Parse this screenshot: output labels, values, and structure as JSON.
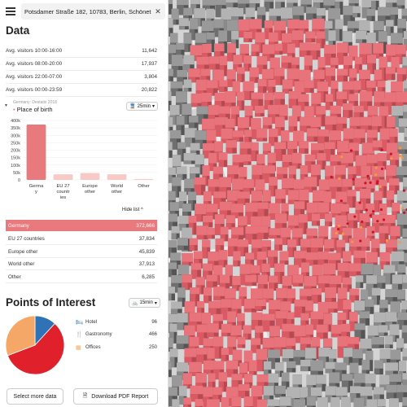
{
  "search": {
    "value": "Potsdamer Straße 182, 10783, Berlin, Schönet"
  },
  "data_section": {
    "title": "Data",
    "stats": [
      {
        "label": "Avg. visitors 10:00-16:00",
        "value": "11,642"
      },
      {
        "label": "Avg. visitors 08:00-20:00",
        "value": "17,937"
      },
      {
        "label": "Avg. visitors 22:00-07:00",
        "value": "3,804"
      },
      {
        "label": "Avg. visitors 00:00-23:59",
        "value": "20,822"
      }
    ]
  },
  "place_of_birth": {
    "source": "Germany: Destatis 2018",
    "title": "Place of birth",
    "time_badge": "25min",
    "hide_list_label": "Hide list",
    "list": [
      {
        "label": "Germany",
        "value": "372,666"
      },
      {
        "label": "EU 27 countries",
        "value": "37,834"
      },
      {
        "label": "Europe other",
        "value": "45,839"
      },
      {
        "label": "World other",
        "value": "37,913"
      },
      {
        "label": "Other",
        "value": "6,285"
      }
    ]
  },
  "chart_data": {
    "type": "bar",
    "categories": [
      "Germany",
      "EU 27 countries",
      "Europe other",
      "World other",
      "Other"
    ],
    "category_tick_lines": [
      [
        "Germa",
        "y"
      ],
      [
        "EU 27",
        "countr",
        "ies"
      ],
      [
        "Europe",
        "other"
      ],
      [
        "World",
        "other"
      ],
      [
        "Other"
      ]
    ],
    "values": [
      372666,
      37834,
      45839,
      37913,
      6285
    ],
    "ylim": [
      0,
      400000
    ],
    "yticks": [
      "0",
      "50k",
      "100k",
      "150k",
      "200k",
      "250k",
      "300k",
      "350k",
      "400k"
    ],
    "colors": [
      "#e8797c",
      "#f7c9c7",
      "#f7c9c7",
      "#f7c9c7",
      "#f7c9c7"
    ],
    "title": "",
    "xlabel": "",
    "ylabel": ""
  },
  "poi": {
    "title": "Points of Interest",
    "time_badge": "15min",
    "items": [
      {
        "icon": "bed-icon",
        "label": "Hotel",
        "value": "96",
        "color": "#2f73b6"
      },
      {
        "icon": "cutlery-icon",
        "label": "Gastronomy",
        "value": "466",
        "color": "#e0202a"
      },
      {
        "icon": "building-icon",
        "label": "Offices",
        "value": "250",
        "color": "#f4a766"
      }
    ],
    "pie_values": [
      96,
      466,
      250
    ]
  },
  "buttons": {
    "select_more": "Select more data",
    "download_pdf": "Download PDF Report"
  },
  "colors": {
    "accent": "#e8797c",
    "map_red": "#d95a62",
    "map_grey": "#7a7a7a"
  }
}
